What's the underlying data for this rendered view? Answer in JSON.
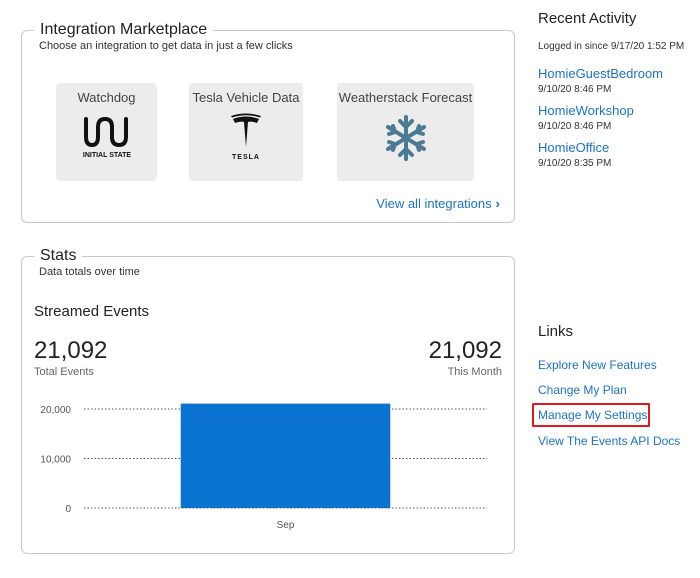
{
  "marketplace": {
    "title": "Integration Marketplace",
    "subtitle": "Choose an integration to get data in just a few clicks",
    "cards": [
      {
        "label": "Watchdog",
        "icon": "initial-state-logo",
        "logo_text": "INITIAL STATE"
      },
      {
        "label": "Tesla Vehicle Data",
        "icon": "tesla-logo",
        "logo_text": "TESLA"
      },
      {
        "label": "Weatherstack Forecast",
        "icon": "snowflake-icon"
      }
    ],
    "view_all": "View all integrations"
  },
  "stats": {
    "title": "Stats",
    "subtitle": "Data totals over time",
    "streamed_label": "Streamed Events",
    "total_value": "21,092",
    "total_label": "Total Events",
    "month_value": "21,092",
    "month_label": "This Month"
  },
  "chart_data": {
    "type": "bar",
    "categories": [
      "Sep"
    ],
    "values": [
      21092
    ],
    "yticks": [
      "0",
      "10,000",
      "20,000"
    ],
    "ylim": [
      0,
      20000
    ],
    "grid": true,
    "bar_color": "#0a73d0"
  },
  "recent": {
    "title": "Recent Activity",
    "logged": "Logged in since 9/17/20 1:52 PM",
    "items": [
      {
        "name": "HomieGuestBedroom",
        "time": "9/10/20 8:46 PM"
      },
      {
        "name": "HomieWorkshop",
        "time": "9/10/20 8:46 PM"
      },
      {
        "name": "HomieOffice",
        "time": "9/10/20 8:35 PM"
      }
    ]
  },
  "links": {
    "title": "Links",
    "items": [
      {
        "label": "Explore New Features"
      },
      {
        "label": "Change My Plan"
      },
      {
        "label": "Manage My Settings"
      },
      {
        "label": "View The Events API Docs"
      }
    ]
  },
  "colors": {
    "link": "#1a73c8",
    "highlight": "#e0191f",
    "bar": "#0a73d0"
  }
}
